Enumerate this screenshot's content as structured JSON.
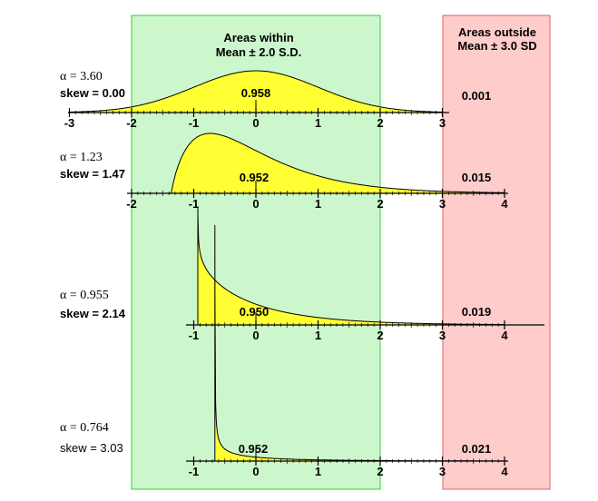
{
  "headers": {
    "within_line1": "Areas within",
    "within_line2": "Mean ± 2.0 S.D.",
    "outside_line1": "Areas outside",
    "outside_line2": "Mean ± 3.0 SD"
  },
  "colors": {
    "within_band": "#ccf7cc",
    "within_border": "#33cc33",
    "outside_band": "#ffcccc",
    "outside_border": "#e06060",
    "fill": "#ffff33",
    "stroke": "#000000"
  },
  "chart_data": {
    "type": "area",
    "title": "",
    "xlabel": "",
    "ylabel": "",
    "bands": {
      "within": [
        -2,
        2
      ],
      "outside_from": 3
    },
    "panels": [
      {
        "alpha_text": "α = 3.60",
        "skew_text": "skew  = 0.00",
        "alpha": 3.6,
        "skew": 0.0,
        "area_within": "0.958",
        "area_outside": "0.001",
        "xlim": [
          -3,
          3
        ],
        "ticks": [
          "-3",
          "-2",
          "-1",
          "0",
          "1",
          "2",
          "3"
        ]
      },
      {
        "alpha_text": "α = 1.23",
        "skew_text": "skew  = 1.47",
        "alpha": 1.23,
        "skew": 1.47,
        "area_within": "0.952",
        "area_outside": "0.015",
        "xlim": [
          -2,
          4
        ],
        "ticks": [
          "-2",
          "-1",
          "0",
          "1",
          "2",
          "3",
          "4"
        ]
      },
      {
        "alpha_text": "α = 0.955",
        "skew_text": "skew  = 2.14",
        "alpha": 0.955,
        "skew": 2.14,
        "area_within": "0.950",
        "area_outside": "0.019",
        "xlim": [
          -1,
          4
        ],
        "ticks": [
          "-1",
          "0",
          "1",
          "2",
          "3",
          "4"
        ]
      },
      {
        "alpha_text": "α = 0.764",
        "skew_text": "skew  = 3.03",
        "alpha": 0.764,
        "skew": 3.03,
        "area_within": "0.952",
        "area_outside": "0.021",
        "xlim": [
          -1,
          4
        ],
        "ticks": [
          "-1",
          "0",
          "1",
          "2",
          "3",
          "4"
        ]
      }
    ]
  }
}
